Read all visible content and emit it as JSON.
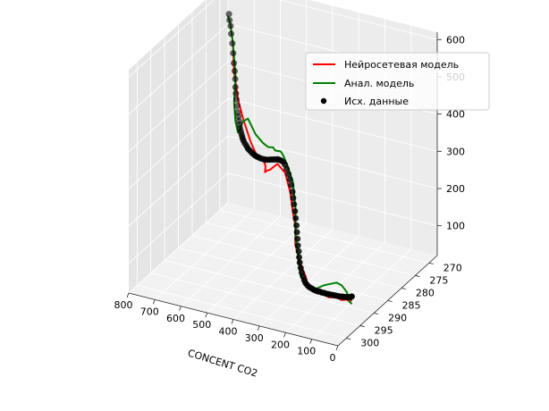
{
  "chart_data": {
    "type": "scatter",
    "projection": "3d",
    "xlabel": "CONCENT CO2",
    "ylabel": "",
    "zlabel": "",
    "x_ticks": [
      800,
      700,
      600,
      500,
      400,
      300,
      200,
      100,
      0
    ],
    "x_tick_labels": [
      "800",
      "700",
      "600",
      "500",
      "400",
      "300",
      "200",
      "100",
      "0"
    ],
    "y_ticks": [
      270,
      275,
      280,
      285,
      290,
      295,
      300
    ],
    "y_tick_labels": [
      "270",
      "275",
      "280",
      "285",
      "290",
      "295",
      "300"
    ],
    "z_ticks": [
      100,
      200,
      300,
      400,
      500,
      600
    ],
    "z_tick_labels": [
      "100",
      "200",
      "300",
      "400",
      "500",
      "600"
    ],
    "xlim": [
      0,
      800
    ],
    "ylim": [
      267,
      303
    ],
    "zlim": [
      20,
      620
    ],
    "grid": true,
    "legend_position": "top-right",
    "legend": [
      {
        "label": "Нейросетевая модель",
        "color": "#ff0000",
        "kind": "line"
      },
      {
        "label": "Анал. модель",
        "color": "#008000",
        "kind": "line"
      },
      {
        "label": "Исх. данные",
        "color": "#000000",
        "kind": "marker"
      }
    ],
    "series": [
      {
        "name": "Нейросетевая модель",
        "type": "line",
        "color": "#ff0000",
        "x": [
          770,
          760,
          745,
          720,
          690,
          640,
          600,
          560,
          530,
          510,
          490,
          470,
          440,
          400,
          360,
          330,
          310,
          300,
          290,
          260,
          240,
          220,
          180,
          150,
          120,
          90,
          60,
          40,
          20,
          10
        ],
        "y": [
          269,
          269,
          270,
          271,
          272,
          274,
          276,
          277,
          279,
          281,
          283,
          284,
          286,
          287,
          288,
          289,
          290,
          290,
          291,
          292,
          292,
          293,
          294,
          294,
          295,
          295,
          296,
          296,
          297,
          297
        ],
        "z": [
          520,
          470,
          400,
          340,
          300,
          260,
          250,
          245,
          248,
          255,
          265,
          280,
          300,
          330,
          320,
          280,
          240,
          200,
          160,
          120,
          90,
          75,
          70,
          72,
          75,
          80,
          85,
          90,
          95,
          100
        ]
      },
      {
        "name": "Анал. модель",
        "type": "line",
        "color": "#008000",
        "x": [
          780,
          770,
          760,
          750,
          745,
          740,
          720,
          700,
          680,
          650,
          600,
          560,
          520,
          480,
          450,
          420,
          390,
          360,
          330,
          310,
          300,
          290,
          270,
          240,
          210,
          180,
          150,
          120,
          90,
          60,
          40,
          20,
          10
        ],
        "y": [
          269,
          269,
          269,
          269,
          270,
          270,
          271,
          272,
          273,
          274,
          276,
          277,
          279,
          281,
          283,
          284,
          286,
          287,
          288,
          289,
          290,
          290,
          291,
          292,
          293,
          294,
          294,
          295,
          295,
          296,
          296,
          297,
          297
        ],
        "z": [
          540,
          520,
          470,
          380,
          320,
          270,
          250,
          270,
          300,
          320,
          300,
          290,
          300,
          320,
          330,
          340,
          350,
          330,
          300,
          240,
          180,
          120,
          80,
          70,
          72,
          80,
          95,
          110,
          120,
          125,
          110,
          95,
          90
        ]
      },
      {
        "name": "Исх. данные",
        "type": "scatter",
        "color": "#000000",
        "x": [
          775,
          772,
          768,
          765,
          760,
          756,
          752,
          748,
          745,
          742,
          738,
          735,
          730,
          726,
          722,
          718,
          714,
          710,
          705,
          700,
          695,
          690,
          685,
          680,
          672,
          664,
          656,
          648,
          640,
          630,
          620,
          610,
          600,
          590,
          580,
          570,
          560,
          548,
          536,
          524,
          512,
          500,
          488,
          476,
          464,
          452,
          440,
          428,
          416,
          404,
          392,
          380,
          368,
          356,
          346,
          338,
          330,
          324,
          318,
          312,
          306,
          300,
          296,
          292,
          288,
          284,
          280,
          276,
          270,
          264,
          256,
          248,
          240,
          230,
          220,
          210,
          200,
          190,
          180,
          170,
          160,
          150,
          140,
          130,
          120,
          110,
          100,
          90,
          80,
          70,
          60,
          50,
          42,
          34,
          26,
          18,
          12,
          8
        ],
        "y": [
          269.0,
          269.1,
          269.1,
          269.2,
          269.2,
          269.3,
          269.4,
          269.5,
          269.6,
          269.8,
          270.0,
          270.1,
          270.3,
          270.5,
          270.6,
          270.8,
          271.0,
          271.2,
          271.4,
          271.7,
          271.9,
          272.2,
          272.5,
          272.7,
          273.1,
          273.4,
          273.8,
          274.2,
          274.6,
          275.0,
          275.5,
          275.9,
          276.4,
          276.8,
          277.3,
          277.7,
          278.2,
          278.7,
          279.2,
          279.7,
          280.3,
          280.8,
          281.4,
          281.9,
          282.5,
          283.0,
          283.6,
          284.1,
          284.7,
          285.2,
          285.7,
          286.2,
          286.7,
          287.2,
          287.6,
          287.9,
          288.2,
          288.5,
          288.8,
          289.0,
          289.3,
          289.6,
          289.8,
          290.0,
          290.2,
          290.3,
          290.5,
          290.7,
          290.9,
          291.1,
          291.4,
          291.7,
          292.0,
          292.3,
          292.6,
          292.9,
          293.2,
          293.5,
          293.8,
          294.1,
          294.3,
          294.6,
          294.8,
          295.1,
          295.3,
          295.5,
          295.7,
          295.9,
          296.1,
          296.3,
          296.5,
          296.6,
          296.8,
          296.9,
          297.0,
          297.1,
          297.2,
          297.2
        ],
        "z": [
          545,
          530,
          515,
          495,
          470,
          445,
          420,
          400,
          380,
          360,
          345,
          330,
          315,
          300,
          290,
          280,
          272,
          265,
          260,
          256,
          252,
          250,
          248,
          246,
          244,
          243,
          242,
          241,
          242,
          243,
          244,
          245,
          247,
          249,
          252,
          255,
          258,
          262,
          266,
          271,
          276,
          282,
          288,
          294,
          300,
          306,
          312,
          318,
          322,
          326,
          328,
          326,
          320,
          312,
          302,
          290,
          276,
          262,
          248,
          232,
          216,
          200,
          184,
          168,
          152,
          138,
          124,
          112,
          100,
          90,
          82,
          76,
          72,
          70,
          69,
          70,
          71,
          72,
          74,
          76,
          78,
          80,
          82,
          84,
          86,
          88,
          90,
          92,
          94,
          96,
          98,
          100,
          102,
          104,
          106,
          108,
          110,
          112
        ]
      }
    ]
  }
}
